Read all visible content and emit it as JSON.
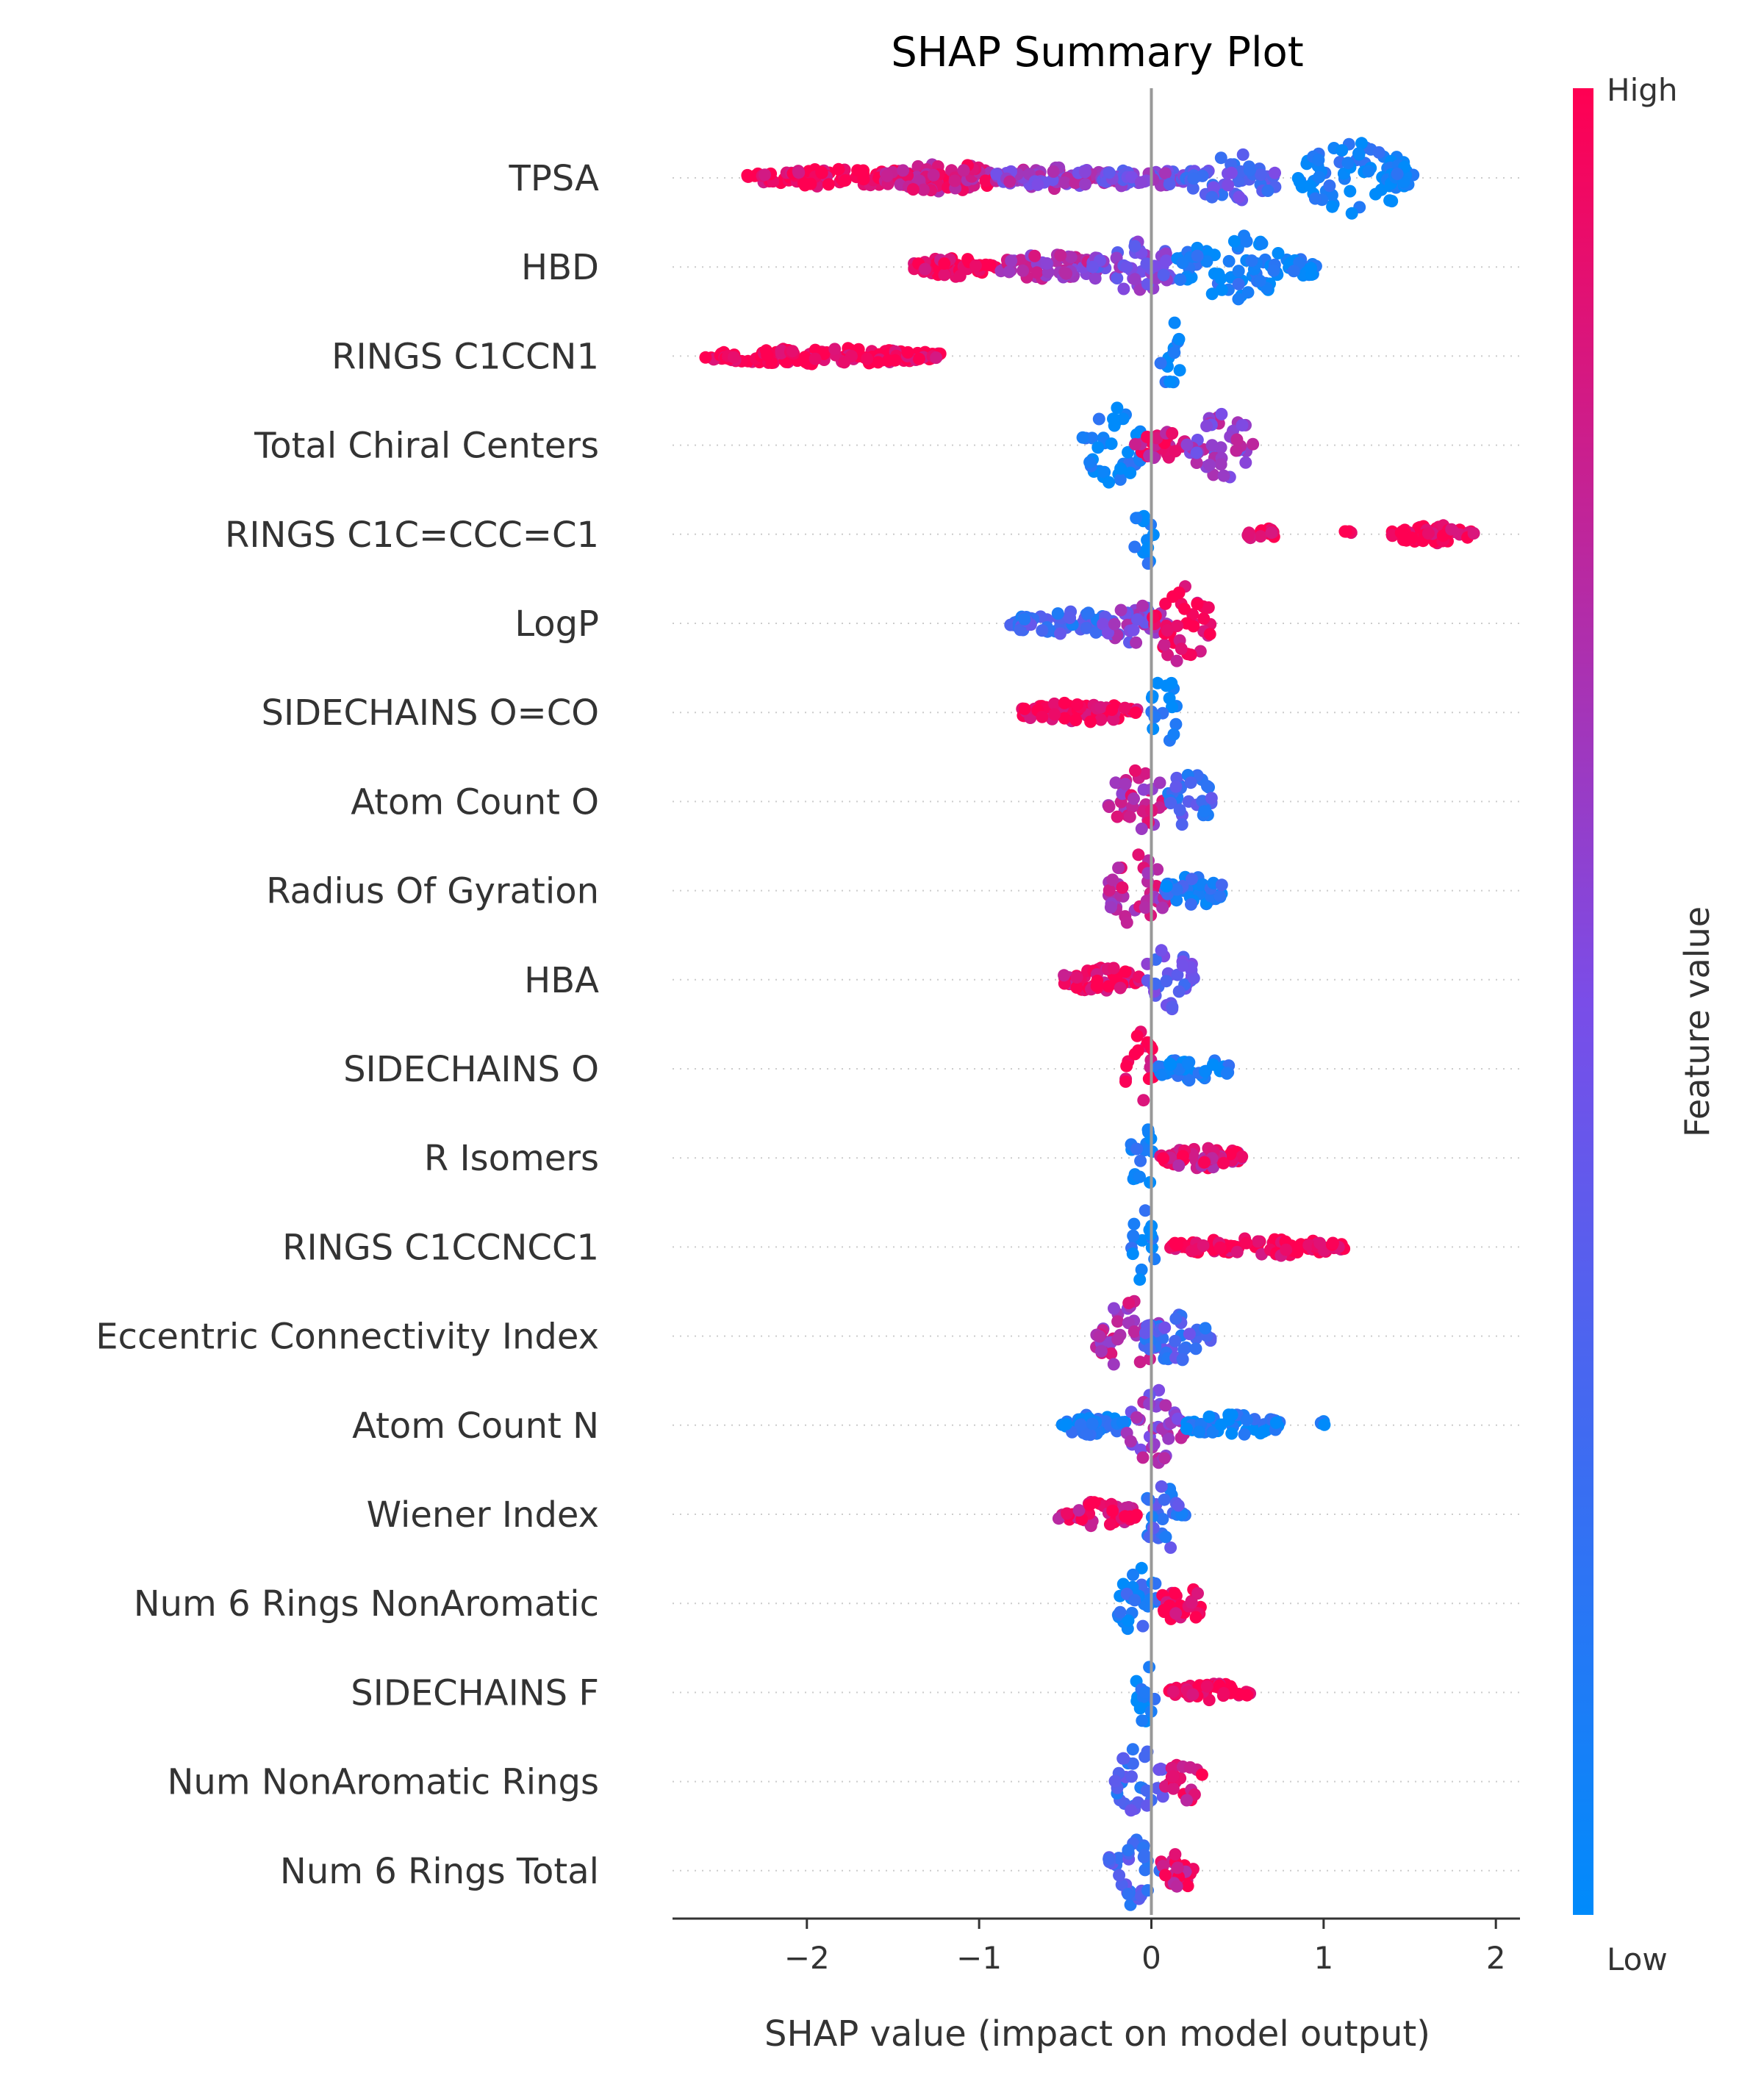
{
  "chart_data": {
    "type": "scatter",
    "title": "SHAP Summary Plot",
    "xlabel": "SHAP value (impact on model output)",
    "ylabel": "",
    "xlim": [
      -2.78,
      2.14
    ],
    "xticks": [
      {
        "value": -2,
        "label": "−2"
      },
      {
        "value": -1,
        "label": "−1"
      },
      {
        "value": 0,
        "label": "0"
      },
      {
        "value": 1,
        "label": "1"
      },
      {
        "value": 2,
        "label": "2"
      }
    ],
    "grid": false,
    "colorbar": {
      "title": "Feature value",
      "high_label": "High",
      "low_label": "Low",
      "high_color": "#ff0052",
      "mid_color": "#7a4de8",
      "low_color": "#008bfb"
    },
    "zero_line_color": "#999999",
    "features": [
      {
        "name": "TPSA",
        "clusters": [
          {
            "from": -2.35,
            "to": -1.2,
            "v": 0.97,
            "s": 0.1
          },
          {
            "from": -1.55,
            "to": -0.9,
            "v": 0.85,
            "s": 0.3
          },
          {
            "from": -0.9,
            "to": -0.2,
            "v": 0.62,
            "s": 0.15
          },
          {
            "from": -0.3,
            "to": 0.2,
            "v": 0.5,
            "s": 0.12
          },
          {
            "from": 0.2,
            "to": 0.75,
            "v": 0.35,
            "s": 0.55
          },
          {
            "from": 0.85,
            "to": 1.5,
            "v": 0.05,
            "s": 0.9
          },
          {
            "from": 1.35,
            "to": 1.52,
            "v": 0.04,
            "s": 0.2
          }
        ]
      },
      {
        "name": "HBD",
        "clusters": [
          {
            "from": -1.38,
            "to": -0.9,
            "v": 0.97,
            "s": 0.12
          },
          {
            "from": -0.9,
            "to": -0.3,
            "v": 0.7,
            "s": 0.2
          },
          {
            "from": -0.35,
            "to": 0.15,
            "v": 0.5,
            "s": 0.6
          },
          {
            "from": 0.15,
            "to": 0.8,
            "v": 0.06,
            "s": 0.8
          },
          {
            "from": 0.8,
            "to": 0.98,
            "v": 0.03,
            "s": 0.1
          }
        ]
      },
      {
        "name": "RINGS C1CCN1",
        "clusters": [
          {
            "from": -2.6,
            "to": -1.22,
            "v": 1.0,
            "s": 0.07
          },
          {
            "from": 0.05,
            "to": 0.17,
            "v": 0.03,
            "s": 1.0
          }
        ]
      },
      {
        "name": "Total Chiral Centers",
        "clusters": [
          {
            "from": -0.4,
            "to": -0.05,
            "v": 0.04,
            "s": 1.0
          },
          {
            "from": -0.1,
            "to": 0.2,
            "v": 0.88,
            "s": 0.25
          },
          {
            "from": 0.2,
            "to": 0.6,
            "v": 0.6,
            "s": 0.85
          }
        ]
      },
      {
        "name": "RINGS C1C=CCC=C1",
        "clusters": [
          {
            "from": -0.1,
            "to": 0.02,
            "v": 0.05,
            "s": 0.95
          },
          {
            "from": 0.56,
            "to": 0.72,
            "v": 1.0,
            "s": 0.05
          },
          {
            "from": 1.12,
            "to": 1.16,
            "v": 1.0,
            "s": 0.05
          },
          {
            "from": 1.38,
            "to": 1.9,
            "v": 1.0,
            "s": 0.1
          }
        ]
      },
      {
        "name": "LogP",
        "clusters": [
          {
            "from": -0.82,
            "to": -0.2,
            "v": 0.25,
            "s": 0.2
          },
          {
            "from": -0.3,
            "to": 0.1,
            "v": 0.55,
            "s": 0.4
          },
          {
            "from": 0.0,
            "to": 0.35,
            "v": 0.93,
            "s": 1.0
          }
        ]
      },
      {
        "name": "SIDECHAINS O=CO",
        "clusters": [
          {
            "from": -0.78,
            "to": -0.08,
            "v": 0.98,
            "s": 0.12
          },
          {
            "from": 0.0,
            "to": 0.15,
            "v": 0.03,
            "s": 1.0
          }
        ]
      },
      {
        "name": "Atom Count O",
        "clusters": [
          {
            "from": -0.25,
            "to": 0.08,
            "v": 0.75,
            "s": 0.9
          },
          {
            "from": 0.08,
            "to": 0.35,
            "v": 0.25,
            "s": 0.75
          }
        ]
      },
      {
        "name": "Radius Of Gyration",
        "clusters": [
          {
            "from": -0.25,
            "to": 0.08,
            "v": 0.75,
            "s": 1.0
          },
          {
            "from": 0.08,
            "to": 0.45,
            "v": 0.15,
            "s": 0.3
          }
        ]
      },
      {
        "name": "HBA",
        "clusters": [
          {
            "from": -0.52,
            "to": -0.05,
            "v": 0.92,
            "s": 0.2
          },
          {
            "from": -0.05,
            "to": 0.25,
            "v": 0.4,
            "s": 0.85
          }
        ]
      },
      {
        "name": "SIDECHAINS O",
        "clusters": [
          {
            "from": -0.15,
            "to": 0.02,
            "v": 0.98,
            "s": 1.0
          },
          {
            "from": 0.03,
            "to": 0.45,
            "v": 0.04,
            "s": 0.2
          }
        ]
      },
      {
        "name": "R Isomers",
        "clusters": [
          {
            "from": -0.12,
            "to": 0.02,
            "v": 0.06,
            "s": 0.95
          },
          {
            "from": 0.05,
            "to": 0.55,
            "v": 0.85,
            "s": 0.15
          }
        ]
      },
      {
        "name": "RINGS C1CCNCC1",
        "clusters": [
          {
            "from": -0.12,
            "to": 0.02,
            "v": 0.04,
            "s": 1.0
          },
          {
            "from": 0.1,
            "to": 1.12,
            "v": 1.0,
            "s": 0.1
          }
        ]
      },
      {
        "name": "Eccentric Connectivity Index",
        "clusters": [
          {
            "from": -0.32,
            "to": 0.05,
            "v": 0.7,
            "s": 0.9
          },
          {
            "from": -0.05,
            "to": 0.35,
            "v": 0.3,
            "s": 0.6
          }
        ]
      },
      {
        "name": "Atom Count N",
        "clusters": [
          {
            "from": -0.52,
            "to": -0.15,
            "v": 0.08,
            "s": 0.15
          },
          {
            "from": -0.15,
            "to": 0.2,
            "v": 0.6,
            "s": 1.0
          },
          {
            "from": 0.2,
            "to": 0.75,
            "v": 0.06,
            "s": 0.15
          },
          {
            "from": 0.98,
            "to": 1.0,
            "v": 0.03,
            "s": 0.05
          }
        ]
      },
      {
        "name": "Wiener Index",
        "clusters": [
          {
            "from": -0.55,
            "to": -0.08,
            "v": 0.9,
            "s": 0.2
          },
          {
            "from": -0.05,
            "to": 0.2,
            "v": 0.25,
            "s": 1.0
          }
        ]
      },
      {
        "name": "Num 6 Rings NonAromatic",
        "clusters": [
          {
            "from": -0.2,
            "to": 0.05,
            "v": 0.12,
            "s": 0.9
          },
          {
            "from": 0.05,
            "to": 0.3,
            "v": 0.95,
            "s": 0.45
          }
        ]
      },
      {
        "name": "SIDECHAINS F",
        "clusters": [
          {
            "from": -0.1,
            "to": 0.02,
            "v": 0.04,
            "s": 1.0
          },
          {
            "from": 0.1,
            "to": 0.58,
            "v": 1.0,
            "s": 0.1
          }
        ]
      },
      {
        "name": "Num NonAromatic Rings",
        "clusters": [
          {
            "from": -0.22,
            "to": 0.08,
            "v": 0.3,
            "s": 0.9
          },
          {
            "from": 0.08,
            "to": 0.3,
            "v": 0.9,
            "s": 0.45
          }
        ]
      },
      {
        "name": "Num 6 Rings Total",
        "clusters": [
          {
            "from": -0.25,
            "to": 0.05,
            "v": 0.3,
            "s": 0.9
          },
          {
            "from": 0.05,
            "to": 0.25,
            "v": 0.88,
            "s": 0.5
          }
        ]
      }
    ]
  }
}
